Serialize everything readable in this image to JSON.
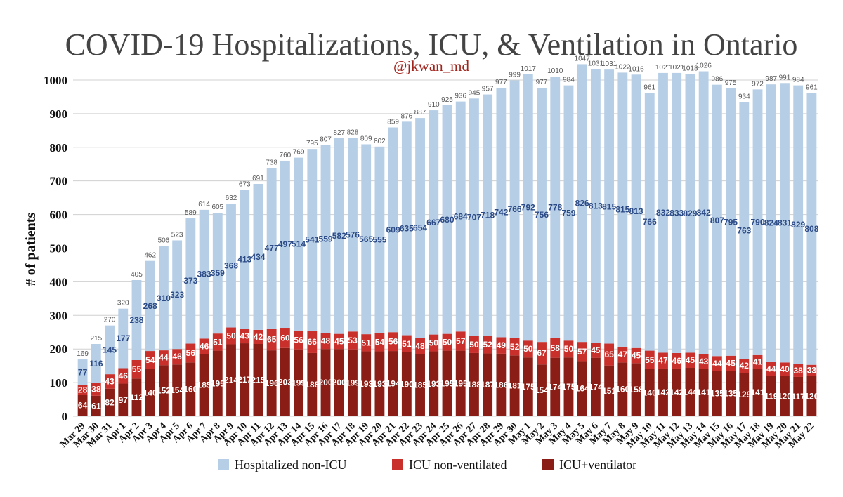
{
  "chart_data": {
    "type": "bar",
    "stacked": true,
    "title": "COVID-19 Hospitalizations, ICU, & Ventilation in Ontario",
    "subtitle": "@jkwan_md",
    "ylabel": "# of patients",
    "xlabel": "",
    "ylim": [
      0,
      1050
    ],
    "yticks": [
      0,
      100,
      200,
      300,
      400,
      500,
      600,
      700,
      800,
      900,
      1000
    ],
    "grid": true,
    "legend_position": "bottom",
    "colors": {
      "hospitalized": "#b7cfe6",
      "icu_nonvent": "#c9302c",
      "icu_vent": "#8a1e16",
      "title": "#444444",
      "subtitle": "#a0251d",
      "hosp_label": "#2b4a86",
      "total_label": "#555555"
    },
    "categories": [
      "Mar 29",
      "Mar 30",
      "Mar 31",
      "Apr 1",
      "Apr 2",
      "Apr 3",
      "Apr 4",
      "Apr 5",
      "Apr 6",
      "Apr 7",
      "Apr 8",
      "Apr 9",
      "Apr 10",
      "Apr 11",
      "Apr 12",
      "Apr 13",
      "Apr 14",
      "Apr 15",
      "Apr 16",
      "Apr 17",
      "Apr 18",
      "Apr 19",
      "Apr 20",
      "Apr 21",
      "Apr 22",
      "Apr 23",
      "Apr 24",
      "Apr 25",
      "Apr 26",
      "Apr 27",
      "Apr 28",
      "Apr 29",
      "Apr 30",
      "May 1",
      "May 2",
      "May 3",
      "May 4",
      "May 5",
      "May 6",
      "May 7",
      "May 8",
      "May 9",
      "May 10",
      "May 11",
      "May 12",
      "May 13",
      "May 14",
      "May 15",
      "May 16",
      "May 17",
      "May 18",
      "May 19",
      "May 20",
      "May 21",
      "May 22"
    ],
    "totals": [
      169,
      215,
      270,
      320,
      405,
      462,
      506,
      523,
      589,
      614,
      605,
      632,
      673,
      691,
      738,
      760,
      769,
      795,
      807,
      827,
      828,
      809,
      802,
      859,
      876,
      887,
      910,
      925,
      936,
      945,
      957,
      977,
      999,
      1017,
      977,
      1010,
      984,
      1047,
      1031,
      1031,
      1022,
      1016,
      961,
      1021,
      1021,
      1018,
      1026,
      986,
      975,
      934,
      972,
      987,
      991,
      984,
      961
    ],
    "series": [
      {
        "name": "Hospitalized non-ICU",
        "key": "hospitalized",
        "values": [
          77,
          116,
          145,
          177,
          238,
          268,
          310,
          323,
          373,
          383,
          359,
          368,
          413,
          434,
          477,
          497,
          514,
          541,
          559,
          582,
          576,
          565,
          555,
          609,
          635,
          654,
          667,
          680,
          684,
          707,
          718,
          742,
          766,
          792,
          756,
          778,
          759,
          826,
          813,
          815,
          815,
          813,
          766,
          832,
          833,
          829,
          842,
          807,
          795,
          763,
          790,
          824,
          831,
          829,
          808
        ]
      },
      {
        "name": "ICU non-ventilated",
        "key": "icu_nonvent",
        "values": [
          28,
          38,
          43,
          46,
          55,
          54,
          44,
          46,
          56,
          46,
          51,
          50,
          43,
          42,
          65,
          60,
          56,
          66,
          48,
          45,
          53,
          51,
          54,
          56,
          51,
          48,
          50,
          50,
          57,
          50,
          52,
          49,
          52,
          50,
          67,
          58,
          50,
          57,
          45,
          65,
          47,
          45,
          55,
          47,
          46,
          45,
          43,
          44,
          45,
          42,
          41,
          44,
          40,
          38,
          33
        ]
      },
      {
        "name": "ICU+ventilator",
        "key": "icu_vent",
        "values": [
          64,
          61,
          82,
          97,
          112,
          140,
          152,
          154,
          160,
          185,
          195,
          214,
          217,
          215,
          196,
          203,
          199,
          188,
          200,
          200,
          199,
          193,
          193,
          194,
          190,
          185,
          193,
          195,
          195,
          188,
          187,
          186,
          181,
          175,
          154,
          174,
          175,
          164,
          174,
          151,
          160,
          158,
          140,
          142,
          142,
          144,
          141,
          135,
          135,
          129,
          141,
          119,
          120,
          117,
          120
        ]
      }
    ]
  }
}
